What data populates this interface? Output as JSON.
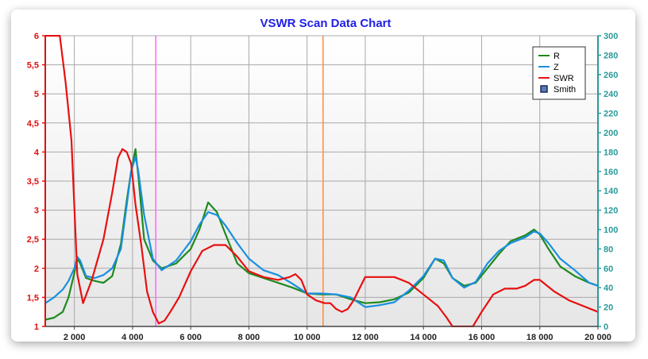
{
  "chart_data": {
    "type": "line",
    "title": "VSWR Scan Data Chart",
    "xlabel": "",
    "ylabel": "",
    "xlim": [
      1000,
      20000
    ],
    "ylim_left": [
      1,
      6
    ],
    "ylim_right": [
      0,
      300
    ],
    "grid": true,
    "legend_placement": "top-right",
    "x_ticks": [
      2000,
      4000,
      6000,
      8000,
      10000,
      12000,
      14000,
      16000,
      18000,
      20000
    ],
    "x_tick_labels": [
      "2 000",
      "4 000",
      "6 000",
      "8 000",
      "10 000",
      "12 000",
      "14 000",
      "16 000",
      "18 000",
      "20 000"
    ],
    "y_left_ticks": [
      1,
      1.5,
      2,
      2.5,
      3,
      3.5,
      4,
      4.5,
      5,
      5.5,
      6
    ],
    "y_left_tick_labels": [
      "1",
      "1,5",
      "2",
      "2,5",
      "3",
      "3,5",
      "4",
      "4,5",
      "5",
      "5,5",
      "6"
    ],
    "y_right_ticks": [
      0,
      20,
      40,
      60,
      80,
      100,
      120,
      140,
      160,
      180,
      200,
      220,
      240,
      260,
      280,
      300
    ],
    "y_right_tick_labels": [
      "0",
      "20",
      "40",
      "60",
      "80",
      "100",
      "120",
      "140",
      "160",
      "180",
      "200",
      "220",
      "240",
      "260",
      "280",
      "300"
    ],
    "markers": [
      {
        "x": 4800,
        "color": "#ff66ff"
      },
      {
        "x": 10550,
        "color": "#ff8c3a"
      }
    ],
    "legend": [
      {
        "label": "R",
        "color": "#1e8a1e",
        "kind": "line"
      },
      {
        "label": "Z",
        "color": "#1a8fe0",
        "kind": "line"
      },
      {
        "label": "SWR",
        "color": "#e81010",
        "kind": "line"
      },
      {
        "label": "Smith",
        "color": "#1a2a5a",
        "kind": "box"
      }
    ],
    "series": [
      {
        "name": "R",
        "axis": "right",
        "color": "#1e8a1e",
        "x": [
          1000,
          1300,
          1600,
          1800,
          2000,
          2100,
          2200,
          2400,
          2700,
          3000,
          3300,
          3600,
          3800,
          3950,
          4100,
          4200,
          4400,
          4700,
          5000,
          5500,
          6000,
          6300,
          6600,
          6900,
          7200,
          7600,
          8000,
          8500,
          9000,
          9500,
          10000,
          10500,
          11000,
          11500,
          12000,
          12500,
          13000,
          13500,
          14000,
          14400,
          14700,
          15000,
          15400,
          15800,
          16200,
          16600,
          17000,
          17500,
          17800,
          18000,
          18300,
          18700,
          19200,
          19700,
          20000
        ],
        "y": [
          7,
          9,
          15,
          30,
          55,
          70,
          65,
          50,
          47,
          45,
          52,
          85,
          130,
          160,
          183,
          155,
          90,
          68,
          60,
          65,
          80,
          100,
          128,
          118,
          95,
          65,
          55,
          50,
          45,
          40,
          34,
          33,
          33,
          28,
          24,
          25,
          28,
          35,
          50,
          70,
          65,
          50,
          42,
          45,
          60,
          75,
          88,
          94,
          100,
          95,
          80,
          62,
          52,
          45,
          42
        ]
      },
      {
        "name": "Z",
        "axis": "right",
        "color": "#1a8fe0",
        "x": [
          1000,
          1300,
          1600,
          1800,
          2000,
          2100,
          2200,
          2400,
          2700,
          3000,
          3300,
          3600,
          3800,
          3950,
          4100,
          4200,
          4400,
          4700,
          5000,
          5500,
          6000,
          6300,
          6600,
          6900,
          7200,
          7600,
          8000,
          8500,
          9000,
          9500,
          10000,
          10500,
          11000,
          11500,
          12000,
          12500,
          13000,
          13500,
          14000,
          14400,
          14700,
          15000,
          15400,
          15800,
          16200,
          16600,
          17000,
          17500,
          17800,
          18000,
          18300,
          18700,
          19200,
          19700,
          20000
        ],
        "y": [
          24,
          30,
          38,
          47,
          60,
          72,
          68,
          52,
          50,
          53,
          60,
          80,
          125,
          160,
          175,
          160,
          115,
          70,
          58,
          68,
          88,
          105,
          118,
          115,
          104,
          86,
          70,
          58,
          53,
          44,
          34,
          34,
          33,
          30,
          20,
          22,
          25,
          37,
          52,
          70,
          68,
          50,
          40,
          46,
          65,
          78,
          86,
          92,
          98,
          96,
          86,
          70,
          58,
          45,
          42
        ]
      },
      {
        "name": "SWR",
        "axis": "left",
        "color": "#e81010",
        "x": [
          1000,
          1100,
          1300,
          1500,
          1700,
          1900,
          2100,
          2300,
          2600,
          3000,
          3300,
          3500,
          3650,
          3800,
          3950,
          4100,
          4300,
          4500,
          4700,
          4900,
          5100,
          5300,
          5600,
          6000,
          6400,
          6800,
          7200,
          7600,
          8000,
          8500,
          9000,
          9400,
          9600,
          9800,
          10000,
          10300,
          10600,
          10800,
          11000,
          11200,
          11400,
          11600,
          12000,
          12500,
          13000,
          13500,
          14000,
          14500,
          14800,
          15000,
          15500,
          15700,
          16000,
          16400,
          16800,
          17200,
          17500,
          17800,
          18000,
          18500,
          19000,
          19500,
          20000
        ],
        "y": [
          6,
          6,
          6,
          6,
          5.2,
          4.2,
          1.9,
          1.4,
          1.8,
          2.5,
          3.3,
          3.9,
          4.05,
          4.0,
          3.8,
          3.1,
          2.4,
          1.6,
          1.25,
          1.05,
          1.1,
          1.25,
          1.5,
          1.95,
          2.3,
          2.4,
          2.4,
          2.2,
          1.95,
          1.85,
          1.8,
          1.85,
          1.9,
          1.8,
          1.55,
          1.45,
          1.4,
          1.4,
          1.3,
          1.25,
          1.3,
          1.45,
          1.85,
          1.85,
          1.85,
          1.75,
          1.55,
          1.35,
          1.15,
          1,
          1,
          1,
          1.25,
          1.55,
          1.65,
          1.65,
          1.7,
          1.8,
          1.8,
          1.6,
          1.45,
          1.35,
          1.25
        ]
      }
    ]
  }
}
